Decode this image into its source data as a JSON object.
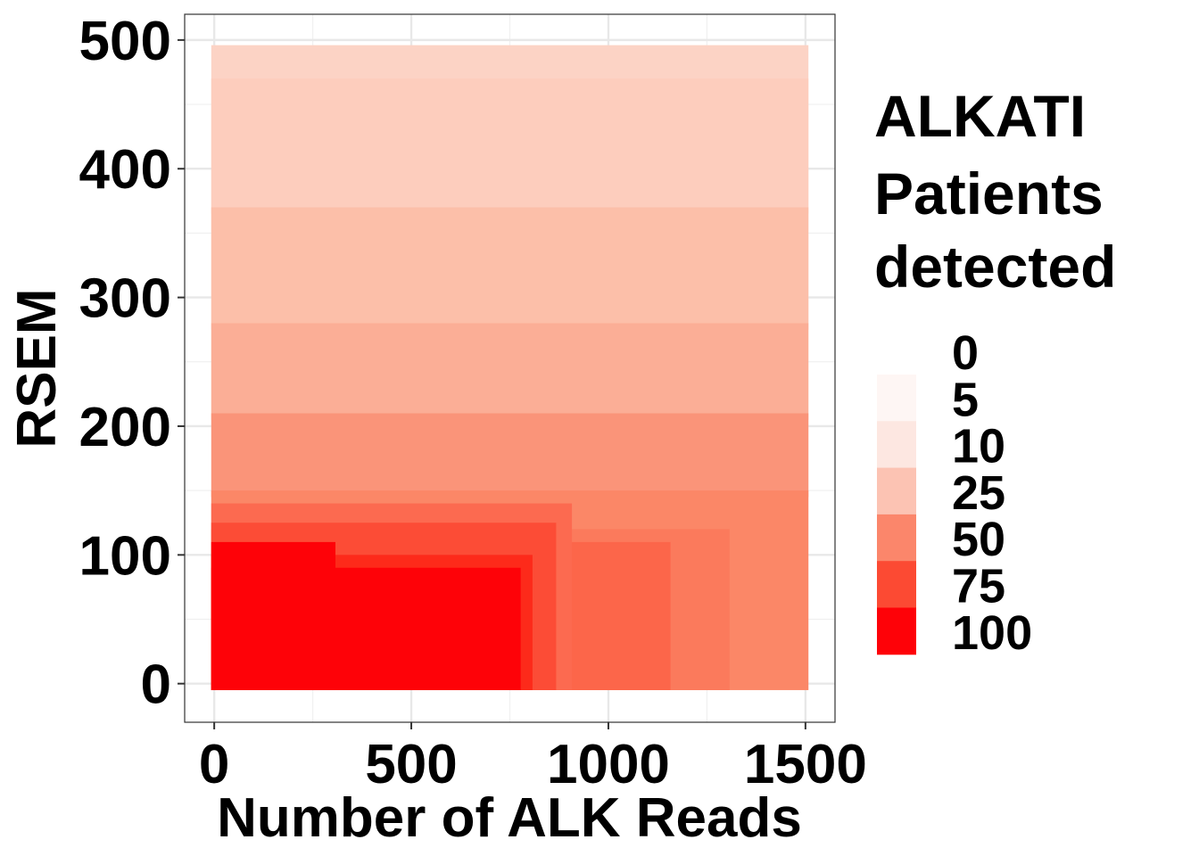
{
  "chart_data": {
    "type": "heatmap",
    "title": "",
    "xlabel": "Number of ALK Reads",
    "ylabel": "RSEM",
    "xlim": [
      -75,
      1575
    ],
    "ylim": [
      -30,
      520
    ],
    "x_ticks": [
      0,
      500,
      1000,
      1500
    ],
    "x_tick_labels": [
      "0",
      "500",
      "1000",
      "1500"
    ],
    "y_ticks": [
      0,
      100,
      200,
      300,
      400,
      500
    ],
    "y_tick_labels": [
      "0",
      "100",
      "200",
      "300",
      "400",
      "500"
    ],
    "grid": true,
    "x_range": [
      0,
      1500
    ],
    "y_range": [
      0,
      500
    ],
    "legend": {
      "position": "right",
      "title_lines": [
        "ALKATI",
        "Patients",
        "detected"
      ],
      "labels": [
        "0",
        "5",
        "10",
        "25",
        "50",
        "75",
        "100"
      ],
      "colors": [
        "#fef6f4",
        "#fde7e1",
        "#fcc3b3",
        "#fb866b",
        "#fc4a33",
        "#fe0208"
      ]
    },
    "regions": [
      {
        "x": [
          0,
          1500
        ],
        "y": [
          0,
          500
        ],
        "color": "#fcd3c5",
        "value": 25
      },
      {
        "x": [
          0,
          1500
        ],
        "y": [
          370,
          470
        ],
        "color": "#fdcdbd",
        "value": 25
      },
      {
        "x": [
          0,
          1500
        ],
        "y": [
          280,
          370
        ],
        "color": "#fcbfa9",
        "value": 30
      },
      {
        "x": [
          0,
          1500
        ],
        "y": [
          210,
          280
        ],
        "color": "#fbae96",
        "value": 35
      },
      {
        "x": [
          0,
          1500
        ],
        "y": [
          150,
          210
        ],
        "color": "#fa9479",
        "value": 45
      },
      {
        "x": [
          0,
          1500
        ],
        "y": [
          0,
          150
        ],
        "color": "#fb8767",
        "value": 50
      },
      {
        "x": [
          0,
          1300
        ],
        "y": [
          0,
          120
        ],
        "color": "#fb7a5c",
        "value": 55
      },
      {
        "x": [
          0,
          1150
        ],
        "y": [
          0,
          110
        ],
        "color": "#fc664a",
        "value": 62
      },
      {
        "x": [
          0,
          900
        ],
        "y": [
          0,
          140
        ],
        "color": "#fc6a50",
        "value": 60
      },
      {
        "x": [
          0,
          860
        ],
        "y": [
          0,
          125
        ],
        "color": "#fc4c36",
        "value": 75
      },
      {
        "x": [
          0,
          800
        ],
        "y": [
          0,
          100
        ],
        "color": "#fd2a1a",
        "value": 88
      },
      {
        "x": [
          0,
          770
        ],
        "y": [
          0,
          90
        ],
        "color": "#fe0208",
        "value": 100
      },
      {
        "x": [
          0,
          300
        ],
        "y": [
          0,
          110
        ],
        "color": "#fe0208",
        "value": 100
      }
    ]
  }
}
